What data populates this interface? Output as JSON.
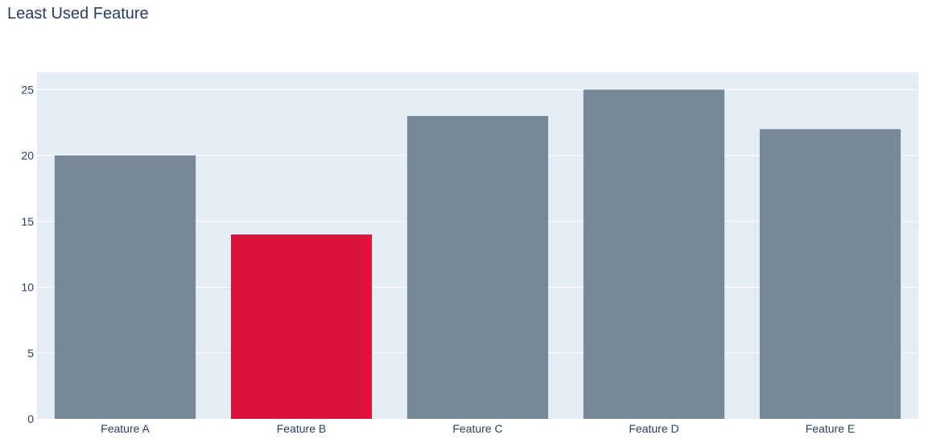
{
  "chart_data": {
    "type": "bar",
    "title": "Least Used Feature",
    "xlabel": "",
    "ylabel": "",
    "categories": [
      "Feature A",
      "Feature B",
      "Feature C",
      "Feature D",
      "Feature E"
    ],
    "values": [
      20,
      14,
      23,
      25,
      22
    ],
    "ylim": [
      0,
      26.3
    ],
    "yticks": [
      0,
      5,
      10,
      15,
      20,
      25
    ],
    "grid": true,
    "legend": "none",
    "colors": {
      "bar_default": "#778899",
      "bar_highlight": "#dc143c",
      "plot_background": "#e5ecf6",
      "gridline": "#ffffff",
      "text": "#2a3f5f"
    },
    "highlight_index": 1
  }
}
